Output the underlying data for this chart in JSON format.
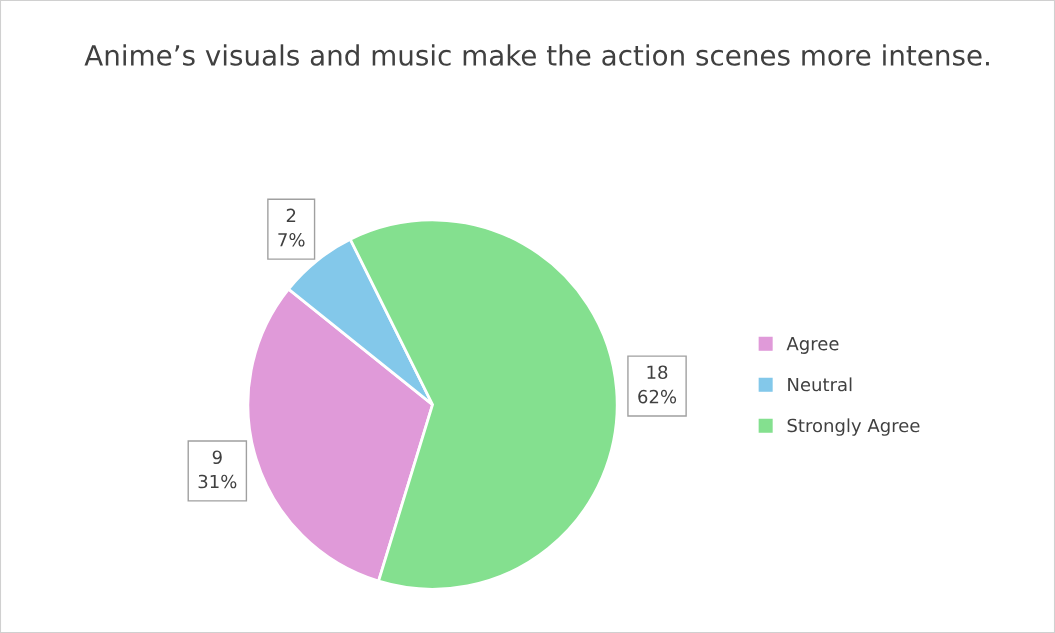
{
  "chart_data": {
    "type": "pie",
    "title": "Anime’s visuals and music make the action scenes more intense.",
    "categories": [
      "Agree",
      "Neutral",
      "Strongly Agree"
    ],
    "values": [
      9,
      2,
      18
    ],
    "colors": [
      "#e09ad9",
      "#83c8ea",
      "#84e08f"
    ],
    "value_labels": [
      "9\n31%",
      "2\n7%",
      "18\n62%"
    ],
    "legend": "right"
  }
}
